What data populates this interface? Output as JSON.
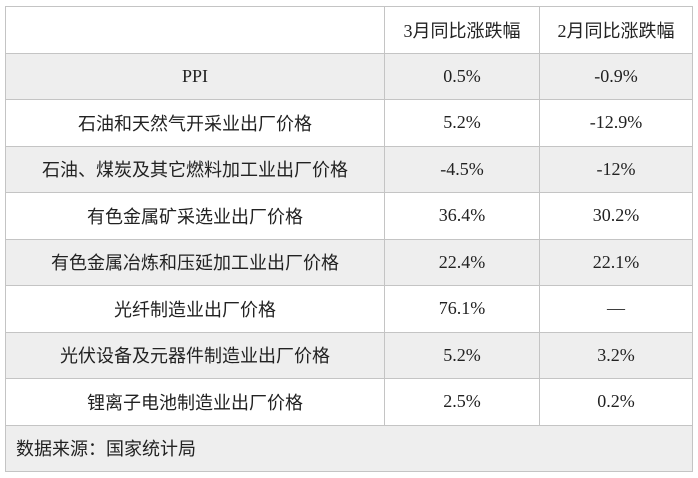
{
  "headers": [
    "",
    "3月同比涨跌幅",
    "2月同比涨跌幅"
  ],
  "rows": [
    [
      "PPI",
      "0.5%",
      "-0.9%"
    ],
    [
      "石油和天然气开采业出厂价格",
      "5.2%",
      "-12.9%"
    ],
    [
      "石油、煤炭及其它燃料加工业出厂价格",
      "-4.5%",
      "-12%"
    ],
    [
      "有色金属矿采选业出厂价格",
      "36.4%",
      "30.2%"
    ],
    [
      "有色金属冶炼和压延加工业出厂价格",
      "22.4%",
      "22.1%"
    ],
    [
      "光纤制造业出厂价格",
      "76.1%",
      "—"
    ],
    [
      "光伏设备及元器件制造业出厂价格",
      "5.2%",
      "3.2%"
    ],
    [
      "锂离子电池制造业出厂价格",
      "2.5%",
      "0.2%"
    ]
  ],
  "footer": "数据来源：国家统计局",
  "colors": {
    "border": "#c4c4c4",
    "shade": "#eeeeee"
  }
}
